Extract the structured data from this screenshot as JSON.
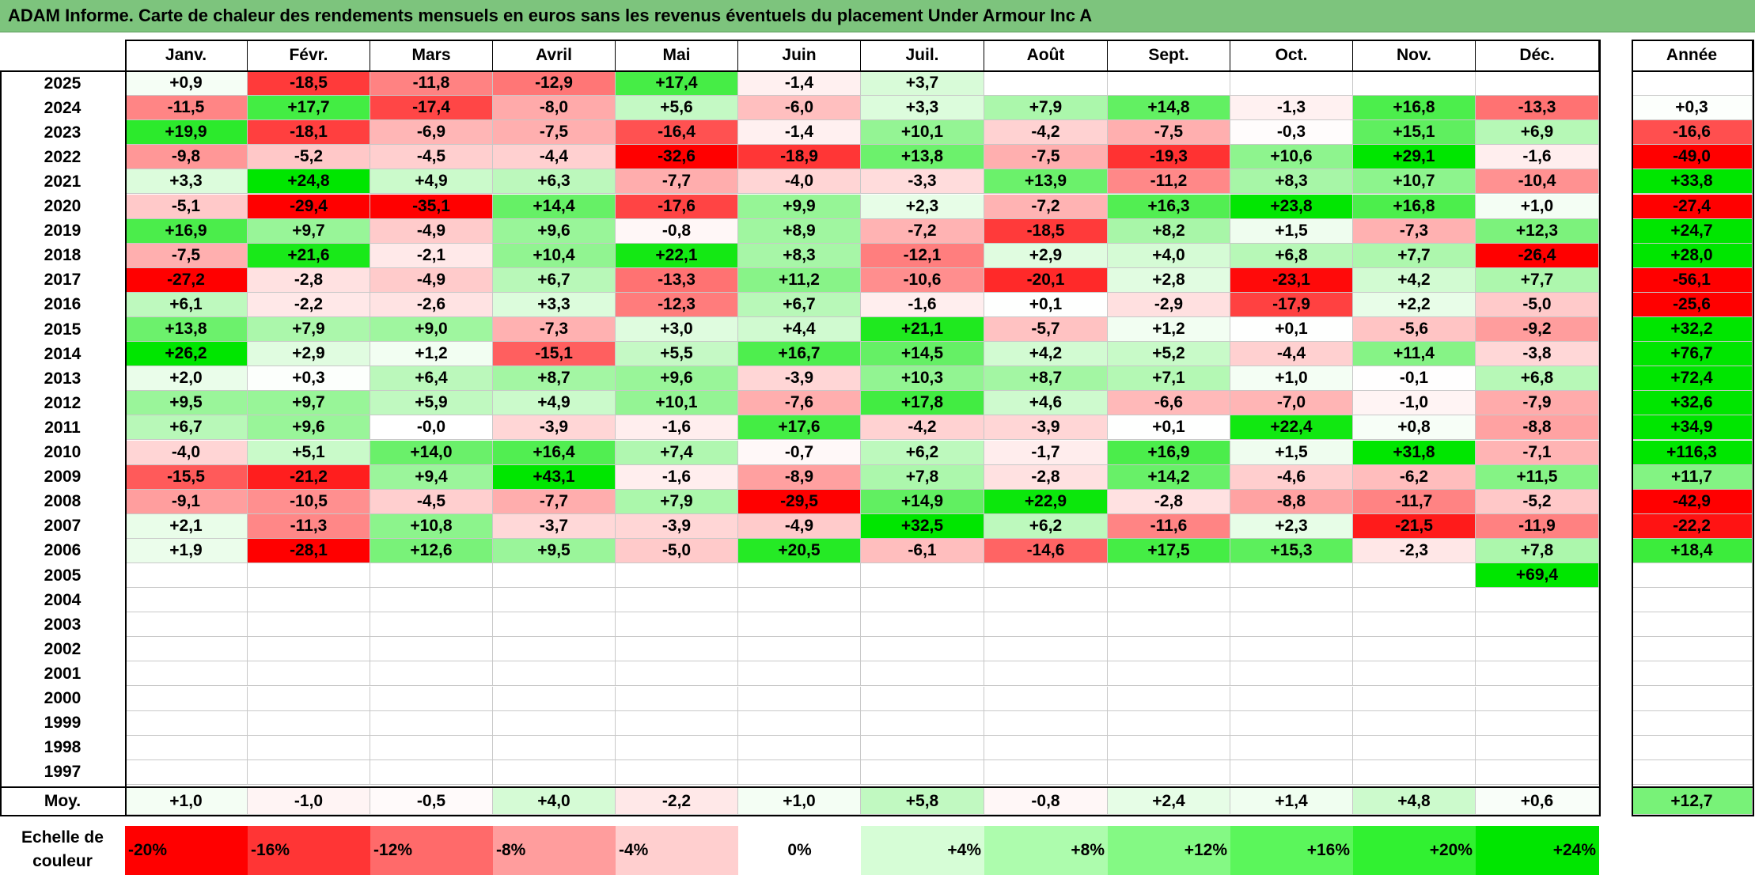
{
  "title": "ADAM Informe. Carte de chaleur des rendements mensuels en euros sans les revenus éventuels du placement Under Armour Inc A",
  "chart_data": {
    "type": "heatmap",
    "title": "ADAM Informe. Carte de chaleur des rendements mensuels en euros sans les revenus éventuels du placement Under Armour Inc A",
    "months": [
      "Janv.",
      "Févr.",
      "Mars",
      "Avril",
      "Mai",
      "Juin",
      "Juil.",
      "Août",
      "Sept.",
      "Oct.",
      "Nov.",
      "Déc."
    ],
    "year_header": "Année",
    "avg_label": "Moy.",
    "rows": [
      {
        "year": "2025",
        "values": [
          "+0,9",
          "-18,5",
          "-11,8",
          "-12,9",
          "+17,4",
          "-1,4",
          "+3,7",
          "",
          "",
          "",
          "",
          ""
        ],
        "annual": ""
      },
      {
        "year": "2024",
        "values": [
          "-11,5",
          "+17,7",
          "-17,4",
          "-8,0",
          "+5,6",
          "-6,0",
          "+3,3",
          "+7,9",
          "+14,8",
          "-1,3",
          "+16,8",
          "-13,3"
        ],
        "annual": "+0,3"
      },
      {
        "year": "2023",
        "values": [
          "+19,9",
          "-18,1",
          "-6,9",
          "-7,5",
          "-16,4",
          "-1,4",
          "+10,1",
          "-4,2",
          "-7,5",
          "-0,3",
          "+15,1",
          "+6,9"
        ],
        "annual": "-16,6"
      },
      {
        "year": "2022",
        "values": [
          "-9,8",
          "-5,2",
          "-4,5",
          "-4,4",
          "-32,6",
          "-18,9",
          "+13,8",
          "-7,5",
          "-19,3",
          "+10,6",
          "+29,1",
          "-1,6"
        ],
        "annual": "-49,0"
      },
      {
        "year": "2021",
        "values": [
          "+3,3",
          "+24,8",
          "+4,9",
          "+6,3",
          "-7,7",
          "-4,0",
          "-3,3",
          "+13,9",
          "-11,2",
          "+8,3",
          "+10,7",
          "-10,4"
        ],
        "annual": "+33,8"
      },
      {
        "year": "2020",
        "values": [
          "-5,1",
          "-29,4",
          "-35,1",
          "+14,4",
          "-17,6",
          "+9,9",
          "+2,3",
          "-7,2",
          "+16,3",
          "+23,8",
          "+16,8",
          "+1,0"
        ],
        "annual": "-27,4"
      },
      {
        "year": "2019",
        "values": [
          "+16,9",
          "+9,7",
          "-4,9",
          "+9,6",
          "-0,8",
          "+8,9",
          "-7,2",
          "-18,5",
          "+8,2",
          "+1,5",
          "-7,3",
          "+12,3"
        ],
        "annual": "+24,7"
      },
      {
        "year": "2018",
        "values": [
          "-7,5",
          "+21,6",
          "-2,1",
          "+10,4",
          "+22,1",
          "+8,3",
          "-12,1",
          "+2,9",
          "+4,0",
          "+6,8",
          "+7,7",
          "-26,4"
        ],
        "annual": "+28,0"
      },
      {
        "year": "2017",
        "values": [
          "-27,2",
          "-2,8",
          "-4,9",
          "+6,7",
          "-13,3",
          "+11,2",
          "-10,6",
          "-20,1",
          "+2,8",
          "-23,1",
          "+4,2",
          "+7,7"
        ],
        "annual": "-56,1"
      },
      {
        "year": "2016",
        "values": [
          "+6,1",
          "-2,2",
          "-2,6",
          "+3,3",
          "-12,3",
          "+6,7",
          "-1,6",
          "+0,1",
          "-2,9",
          "-17,9",
          "+2,2",
          "-5,0"
        ],
        "annual": "-25,6"
      },
      {
        "year": "2015",
        "values": [
          "+13,8",
          "+7,9",
          "+9,0",
          "-7,3",
          "+3,0",
          "+4,4",
          "+21,1",
          "-5,7",
          "+1,2",
          "+0,1",
          "-5,6",
          "-9,2"
        ],
        "annual": "+32,2"
      },
      {
        "year": "2014",
        "values": [
          "+26,2",
          "+2,9",
          "+1,2",
          "-15,1",
          "+5,5",
          "+16,7",
          "+14,5",
          "+4,2",
          "+5,2",
          "-4,4",
          "+11,4",
          "-3,8"
        ],
        "annual": "+76,7"
      },
      {
        "year": "2013",
        "values": [
          "+2,0",
          "+0,3",
          "+6,4",
          "+8,7",
          "+9,6",
          "-3,9",
          "+10,3",
          "+8,7",
          "+7,1",
          "+1,0",
          "-0,1",
          "+6,8"
        ],
        "annual": "+72,4"
      },
      {
        "year": "2012",
        "values": [
          "+9,5",
          "+9,7",
          "+5,9",
          "+4,9",
          "+10,1",
          "-7,6",
          "+17,8",
          "+4,6",
          "-6,6",
          "-7,0",
          "-1,0",
          "-7,9"
        ],
        "annual": "+32,6"
      },
      {
        "year": "2011",
        "values": [
          "+6,7",
          "+9,6",
          "-0,0",
          "-3,9",
          "-1,6",
          "+17,6",
          "-4,2",
          "-3,9",
          "+0,1",
          "+22,4",
          "+0,8",
          "-8,8"
        ],
        "annual": "+34,9"
      },
      {
        "year": "2010",
        "values": [
          "-4,0",
          "+5,1",
          "+14,0",
          "+16,4",
          "+7,4",
          "-0,7",
          "+6,2",
          "-1,7",
          "+16,9",
          "+1,5",
          "+31,8",
          "-7,1"
        ],
        "annual": "+116,3"
      },
      {
        "year": "2009",
        "values": [
          "-15,5",
          "-21,2",
          "+9,4",
          "+43,1",
          "-1,6",
          "-8,9",
          "+7,8",
          "-2,8",
          "+14,2",
          "-4,6",
          "-6,2",
          "+11,5"
        ],
        "annual": "+11,7"
      },
      {
        "year": "2008",
        "values": [
          "-9,1",
          "-10,5",
          "-4,5",
          "-7,7",
          "+7,9",
          "-29,5",
          "+14,9",
          "+22,9",
          "-2,8",
          "-8,8",
          "-11,7",
          "-5,2"
        ],
        "annual": "-42,9"
      },
      {
        "year": "2007",
        "values": [
          "+2,1",
          "-11,3",
          "+10,8",
          "-3,7",
          "-3,9",
          "-4,9",
          "+32,5",
          "+6,2",
          "-11,6",
          "+2,3",
          "-21,5",
          "-11,9"
        ],
        "annual": "-22,2"
      },
      {
        "year": "2006",
        "values": [
          "+1,9",
          "-28,1",
          "+12,6",
          "+9,5",
          "-5,0",
          "+20,5",
          "-6,1",
          "-14,6",
          "+17,5",
          "+15,3",
          "-2,3",
          "+7,8"
        ],
        "annual": "+18,4"
      },
      {
        "year": "2005",
        "values": [
          "",
          "",
          "",
          "",
          "",
          "",
          "",
          "",
          "",
          "",
          "",
          "+69,4"
        ],
        "annual": ""
      },
      {
        "year": "2004",
        "values": [
          "",
          "",
          "",
          "",
          "",
          "",
          "",
          "",
          "",
          "",
          "",
          ""
        ],
        "annual": ""
      },
      {
        "year": "2003",
        "values": [
          "",
          "",
          "",
          "",
          "",
          "",
          "",
          "",
          "",
          "",
          "",
          ""
        ],
        "annual": ""
      },
      {
        "year": "2002",
        "values": [
          "",
          "",
          "",
          "",
          "",
          "",
          "",
          "",
          "",
          "",
          "",
          ""
        ],
        "annual": ""
      },
      {
        "year": "2001",
        "values": [
          "",
          "",
          "",
          "",
          "",
          "",
          "",
          "",
          "",
          "",
          "",
          ""
        ],
        "annual": ""
      },
      {
        "year": "2000",
        "values": [
          "",
          "",
          "",
          "",
          "",
          "",
          "",
          "",
          "",
          "",
          "",
          ""
        ],
        "annual": ""
      },
      {
        "year": "1999",
        "values": [
          "",
          "",
          "",
          "",
          "",
          "",
          "",
          "",
          "",
          "",
          "",
          ""
        ],
        "annual": ""
      },
      {
        "year": "1998",
        "values": [
          "",
          "",
          "",
          "",
          "",
          "",
          "",
          "",
          "",
          "",
          "",
          ""
        ],
        "annual": ""
      },
      {
        "year": "1997",
        "values": [
          "",
          "",
          "",
          "",
          "",
          "",
          "",
          "",
          "",
          "",
          "",
          ""
        ],
        "annual": ""
      }
    ],
    "averages": {
      "values": [
        "+1,0",
        "-1,0",
        "-0,5",
        "+4,0",
        "-2,2",
        "+1,0",
        "+5,8",
        "-0,8",
        "+2,4",
        "+1,4",
        "+4,8",
        "+0,6"
      ],
      "annual": "+12,7"
    },
    "color_scale": {
      "label": "Echelle de couleur",
      "stops": [
        {
          "label": "-20%",
          "value": -20,
          "color": "#ff0000",
          "align": "left"
        },
        {
          "label": "-16%",
          "value": -16,
          "color": "#ff3535",
          "align": "left"
        },
        {
          "label": "-12%",
          "value": -12,
          "color": "#ff6a6a",
          "align": "left"
        },
        {
          "label": "-8%",
          "value": -8,
          "color": "#ff9d9d",
          "align": "left"
        },
        {
          "label": "-4%",
          "value": -4,
          "color": "#ffcfcf",
          "align": "left"
        },
        {
          "label": "0%",
          "value": 0,
          "color": "#ffffff",
          "align": "center"
        },
        {
          "label": "+4%",
          "value": 4,
          "color": "#d6fdd6",
          "align": "right"
        },
        {
          "label": "+8%",
          "value": 8,
          "color": "#adfcad",
          "align": "right"
        },
        {
          "label": "+12%",
          "value": 12,
          "color": "#84f984",
          "align": "right"
        },
        {
          "label": "+16%",
          "value": 16,
          "color": "#5bf65b",
          "align": "right"
        },
        {
          "label": "+20%",
          "value": 20,
          "color": "#31f131",
          "align": "right"
        },
        {
          "label": "+24%",
          "value": 24,
          "color": "#00e600",
          "align": "right"
        }
      ]
    }
  }
}
